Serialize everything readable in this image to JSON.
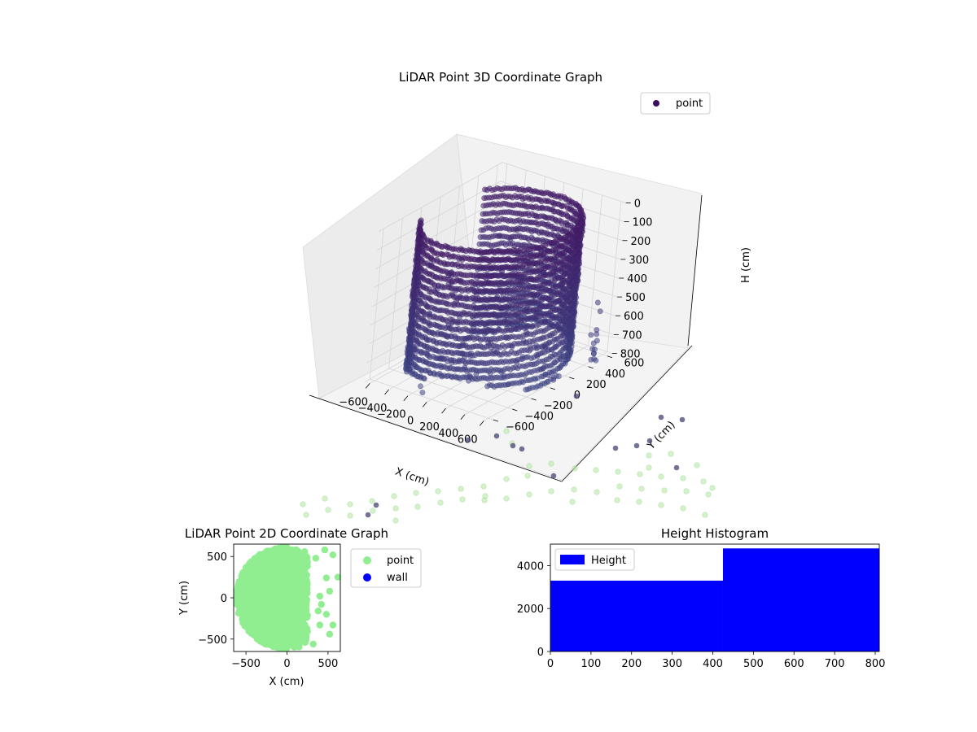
{
  "chart_data": [
    {
      "type": "scatter",
      "projection": "3d",
      "title": "LiDAR Point 3D Coordinate Graph",
      "xlabel": "X (cm)",
      "ylabel": "Y (cm)",
      "zlabel": "H (cm)",
      "xticks": [
        "−600",
        "−400",
        "−200",
        "0",
        "200",
        "400",
        "600"
      ],
      "yticks": [
        "−600",
        "−400",
        "−200",
        "0",
        "200",
        "400",
        "600"
      ],
      "zticks": [
        "0",
        "100",
        "200",
        "300",
        "400",
        "500",
        "600",
        "700",
        "800"
      ],
      "xlim": [
        -650,
        650
      ],
      "ylim": [
        -650,
        650
      ],
      "zlim": [
        0,
        800
      ],
      "z_inverted": true,
      "grid": true,
      "legend": {
        "position": "top-right",
        "entries": [
          "point"
        ]
      },
      "series": [
        {
          "name": "point",
          "color": "#3b1a5e",
          "description_values": "dense cylindrical wall of points, radius about 600 cm, heights 0–800 cm"
        }
      ]
    },
    {
      "type": "scatter",
      "title": "LiDAR Point 2D Coordinate Graph",
      "xlabel": "X (cm)",
      "ylabel": "Y (cm)",
      "xticks": [
        "−500",
        "0",
        "500"
      ],
      "yticks": [
        "500",
        "0",
        "−500"
      ],
      "xlim": [
        -650,
        650
      ],
      "ylim": [
        -650,
        650
      ],
      "legend": {
        "position": "outside-right",
        "entries": [
          "point",
          "wall"
        ]
      },
      "series": [
        {
          "name": "point",
          "color": "#90ee90"
        },
        {
          "name": "wall",
          "color": "#0000ff"
        }
      ]
    },
    {
      "type": "bar",
      "title": "Height Histogram",
      "xticks": [
        "0",
        "100",
        "200",
        "300",
        "400",
        "500",
        "600",
        "700",
        "800"
      ],
      "yticks": [
        "0",
        "2000",
        "4000"
      ],
      "xlim": [
        0,
        810
      ],
      "ylim": [
        0,
        5000
      ],
      "bins": [
        {
          "x0": 0,
          "x1": 425,
          "count": 3300
        },
        {
          "x0": 425,
          "x1": 810,
          "count": 4800
        }
      ],
      "legend": {
        "position": "top-left",
        "entries": [
          "Height"
        ]
      },
      "series": [
        {
          "name": "Height",
          "color": "#0000ff"
        }
      ]
    }
  ]
}
